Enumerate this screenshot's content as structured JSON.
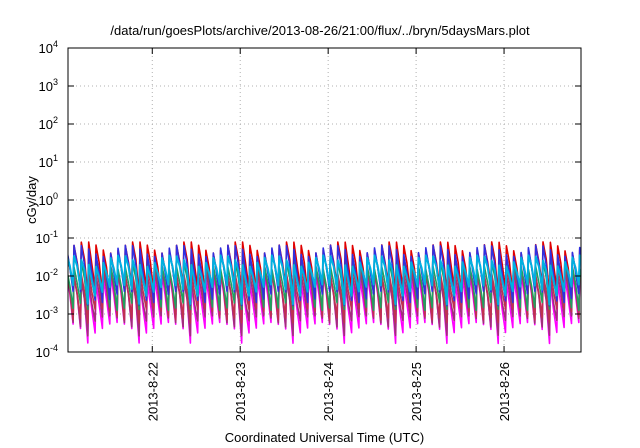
{
  "chart_data": {
    "type": "line",
    "title": "/data/run/goesPlots/archive/2013-08-26/21:00/flux/../bryn/5daysMars.plot",
    "xlabel": "Coordinated Universal Time (UTC)",
    "ylabel": "cGy/day",
    "yscale": "log",
    "ylim": [
      0.0001,
      10000
    ],
    "xlim": [
      "2013-08-21T01:00",
      "2013-08-26T21:00"
    ],
    "grid": true,
    "legend": "none",
    "x_ticks": [
      "2013-8-22",
      "2013-8-23",
      "2013-8-24",
      "2013-8-25",
      "2013-8-26"
    ],
    "y_ticks": [
      {
        "base": "10",
        "exp": "-4"
      },
      {
        "base": "10",
        "exp": "-3"
      },
      {
        "base": "10",
        "exp": "-2"
      },
      {
        "base": "10",
        "exp": "-1"
      },
      {
        "base": "10",
        "exp": "0"
      },
      {
        "base": "10",
        "exp": "1"
      },
      {
        "base": "10",
        "exp": "2"
      },
      {
        "base": "10",
        "exp": "3"
      },
      {
        "base": "10",
        "exp": "4"
      }
    ],
    "cycle_hours": 2.0,
    "series": [
      {
        "color": "#ff00ff",
        "peak": 0.012,
        "trough": 0.0006
      },
      {
        "color": "#a0307a",
        "peak": 0.015,
        "trough": 0.0009
      },
      {
        "color": "#c03050",
        "peak": 0.02,
        "trough": 0.0014
      },
      {
        "color": "#20a060",
        "peak": 0.03,
        "trough": 0.0025
      },
      {
        "color": "#e00000",
        "peak": 0.08,
        "trough": 0.006
      },
      {
        "color": "#3030e0",
        "peak": 0.065,
        "trough": 0.004
      },
      {
        "color": "#00b0e0",
        "peak": 0.035,
        "trough": 0.006
      }
    ]
  }
}
